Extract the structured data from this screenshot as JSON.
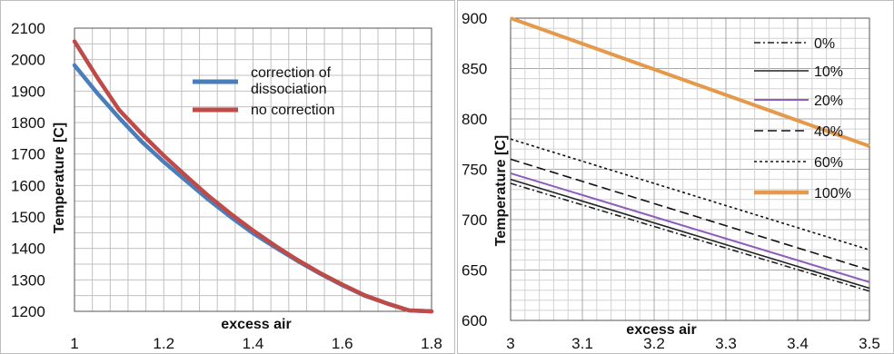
{
  "chart_data": [
    {
      "type": "line",
      "title": "",
      "xlabel": "excess air",
      "ylabel": "Temperature [C]",
      "xlim": [
        1,
        1.8
      ],
      "ylim": [
        1200,
        2100
      ],
      "xticks": [
        "1",
        "1.2",
        "1.4",
        "1.6",
        "1.8"
      ],
      "yticks": [
        "1200",
        "1300",
        "1400",
        "1500",
        "1600",
        "1700",
        "1800",
        "1900",
        "2000",
        "2100"
      ],
      "grid": true,
      "legend": "upper-middle",
      "series": [
        {
          "name": "correction of dissociation",
          "color": "#4a7ebb",
          "x": [
            1.0,
            1.05,
            1.1,
            1.15,
            1.2,
            1.25,
            1.3,
            1.35,
            1.4,
            1.45,
            1.5,
            1.55,
            1.6,
            1.65,
            1.7,
            1.75,
            1.8
          ],
          "values": [
            1982,
            1895,
            1815,
            1740,
            1675,
            1615,
            1555,
            1500,
            1448,
            1403,
            1360,
            1320,
            1283,
            1250,
            1225,
            1203,
            1200
          ]
        },
        {
          "name": "no correction",
          "color": "#be4b48",
          "x": [
            1.0,
            1.05,
            1.1,
            1.15,
            1.2,
            1.25,
            1.3,
            1.35,
            1.4,
            1.45,
            1.5,
            1.55,
            1.6,
            1.65,
            1.7,
            1.75,
            1.8
          ],
          "values": [
            2058,
            1945,
            1840,
            1765,
            1695,
            1630,
            1567,
            1510,
            1457,
            1408,
            1363,
            1322,
            1285,
            1251,
            1225,
            1203,
            1200
          ]
        }
      ]
    },
    {
      "type": "line",
      "title": "",
      "xlabel": "excess air",
      "ylabel": "Temperature [C]",
      "xlim": [
        3,
        3.5
      ],
      "ylim": [
        600,
        900
      ],
      "xticks": [
        "3",
        "3.1",
        "3.2",
        "3.3",
        "3.4",
        "3.5"
      ],
      "yticks": [
        "600",
        "650",
        "700",
        "750",
        "800",
        "850",
        "900"
      ],
      "grid": true,
      "legend": "right",
      "series": [
        {
          "name": "0%",
          "color": "#222222",
          "dash": "dashdot",
          "x": [
            3,
            3.5
          ],
          "values": [
            736,
            629
          ]
        },
        {
          "name": "10%",
          "color": "#222222",
          "dash": "solid",
          "x": [
            3,
            3.5
          ],
          "values": [
            740,
            632
          ]
        },
        {
          "name": "20%",
          "color": "#8e5cba",
          "dash": "solid",
          "x": [
            3,
            3.5
          ],
          "values": [
            746,
            638
          ]
        },
        {
          "name": "40%",
          "color": "#111111",
          "dash": "longdash",
          "x": [
            3,
            3.5
          ],
          "values": [
            760,
            650
          ]
        },
        {
          "name": "60%",
          "color": "#111111",
          "dash": "dotted",
          "x": [
            3,
            3.5
          ],
          "values": [
            780,
            670
          ]
        },
        {
          "name": "100%",
          "color": "#e5994a",
          "dash": "solid",
          "x": [
            3,
            3.5
          ],
          "values": [
            900,
            773
          ]
        }
      ]
    }
  ]
}
